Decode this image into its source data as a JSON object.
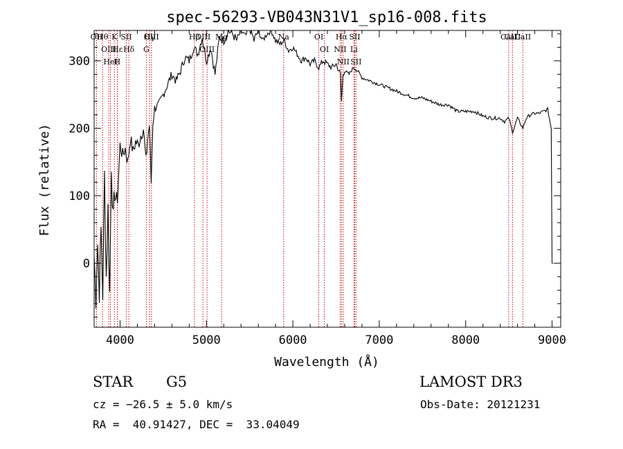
{
  "chart_data": {
    "type": "line",
    "title": "spec-56293-VB043N31V1_sp16-008.fits",
    "xlabel": "Wavelength (Å)",
    "ylabel": "Flux (relative)",
    "xlim": [
      3700,
      9100
    ],
    "ylim": [
      -95,
      345
    ],
    "x_ticks": [
      4000,
      5000,
      6000,
      7000,
      8000,
      9000
    ],
    "y_ticks": [
      0,
      100,
      200,
      300
    ],
    "grid": false,
    "series": [
      {
        "name": "flux",
        "x": [
          3700,
          3720,
          3740,
          3760,
          3780,
          3800,
          3820,
          3840,
          3860,
          3880,
          3900,
          3920,
          3940,
          3960,
          3980,
          4000,
          4030,
          4060,
          4090,
          4120,
          4150,
          4180,
          4210,
          4240,
          4270,
          4300,
          4320,
          4340,
          4360,
          4380,
          4400,
          4450,
          4500,
          4550,
          4600,
          4650,
          4700,
          4750,
          4800,
          4850,
          4900,
          4950,
          5000,
          5050,
          5100,
          5150,
          5200,
          5250,
          5300,
          5350,
          5400,
          5450,
          5500,
          5550,
          5600,
          5650,
          5700,
          5750,
          5800,
          5850,
          5900,
          5950,
          6000,
          6050,
          6100,
          6150,
          6200,
          6250,
          6300,
          6350,
          6400,
          6450,
          6500,
          6550,
          6563,
          6580,
          6600,
          6650,
          6700,
          6750,
          6800,
          6900,
          7000,
          7100,
          7200,
          7300,
          7400,
          7500,
          7600,
          7700,
          7800,
          7900,
          8000,
          8100,
          8200,
          8300,
          8400,
          8450,
          8500,
          8542,
          8560,
          8600,
          8662,
          8700,
          8750,
          8800,
          8850,
          8900,
          8950,
          8990,
          9000,
          9010
        ],
        "y": [
          10,
          -50,
          30,
          -40,
          50,
          -45,
          130,
          -20,
          80,
          -45,
          150,
          60,
          110,
          85,
          120,
          175,
          160,
          170,
          150,
          185,
          165,
          180,
          175,
          190,
          200,
          150,
          185,
          205,
          120,
          210,
          230,
          235,
          250,
          265,
          280,
          270,
          285,
          305,
          300,
          320,
          310,
          335,
          300,
          320,
          280,
          335,
          330,
          345,
          340,
          330,
          345,
          335,
          350,
          330,
          345,
          330,
          340,
          345,
          330,
          325,
          330,
          315,
          320,
          310,
          300,
          305,
          295,
          300,
          290,
          300,
          295,
          290,
          295,
          280,
          240,
          280,
          285,
          280,
          290,
          285,
          275,
          270,
          265,
          260,
          255,
          250,
          245,
          245,
          240,
          235,
          235,
          225,
          225,
          225,
          218,
          215,
          215,
          210,
          215,
          195,
          200,
          215,
          200,
          215,
          220,
          222,
          222,
          225,
          228,
          200,
          0,
          0
        ]
      }
    ],
    "line_markers": [
      {
        "label": "Hθ",
        "x": 3798
      },
      {
        "label": "OII",
        "x": 3727
      },
      {
        "label": "OIII",
        "x": 3869
      },
      {
        "label": "K",
        "x": 3934
      },
      {
        "label": "HeI",
        "x": 3889
      },
      {
        "label": "Hε",
        "x": 3970
      },
      {
        "label": "SII",
        "x": 4072
      },
      {
        "label": "H",
        "x": 3968
      },
      {
        "label": "Hδ",
        "x": 4102
      },
      {
        "label": "OIII",
        "x": 4363
      },
      {
        "label": "Hγ",
        "x": 4341
      },
      {
        "label": "G",
        "x": 4304
      },
      {
        "label": "Hβ",
        "x": 4861
      },
      {
        "label": "OIII",
        "x": 4959
      },
      {
        "label": "OIII",
        "x": 5007
      },
      {
        "label": "Mg",
        "x": 5175
      },
      {
        "label": "Na",
        "x": 5893
      },
      {
        "label": "OI",
        "x": 6300
      },
      {
        "label": "OI",
        "x": 6364
      },
      {
        "label": "Hα",
        "x": 6563
      },
      {
        "label": "SII",
        "x": 6716
      },
      {
        "label": "NII",
        "x": 6548
      },
      {
        "label": "Li",
        "x": 6707
      },
      {
        "label": "NII",
        "x": 6583
      },
      {
        "label": "SII",
        "x": 6731
      },
      {
        "label": "CaII",
        "x": 8542
      },
      {
        "label": "CaII",
        "x": 8498
      },
      {
        "label": "CaII",
        "x": 8662
      }
    ]
  },
  "info": {
    "object_class": "STAR",
    "subclass": "G5",
    "survey": "LAMOST DR3",
    "cz": "cz = −26.5 ± 5.0 km/s",
    "obs_date": "Obs-Date: 20121231",
    "coords": "RA =  40.91427, DEC =  33.04049"
  }
}
